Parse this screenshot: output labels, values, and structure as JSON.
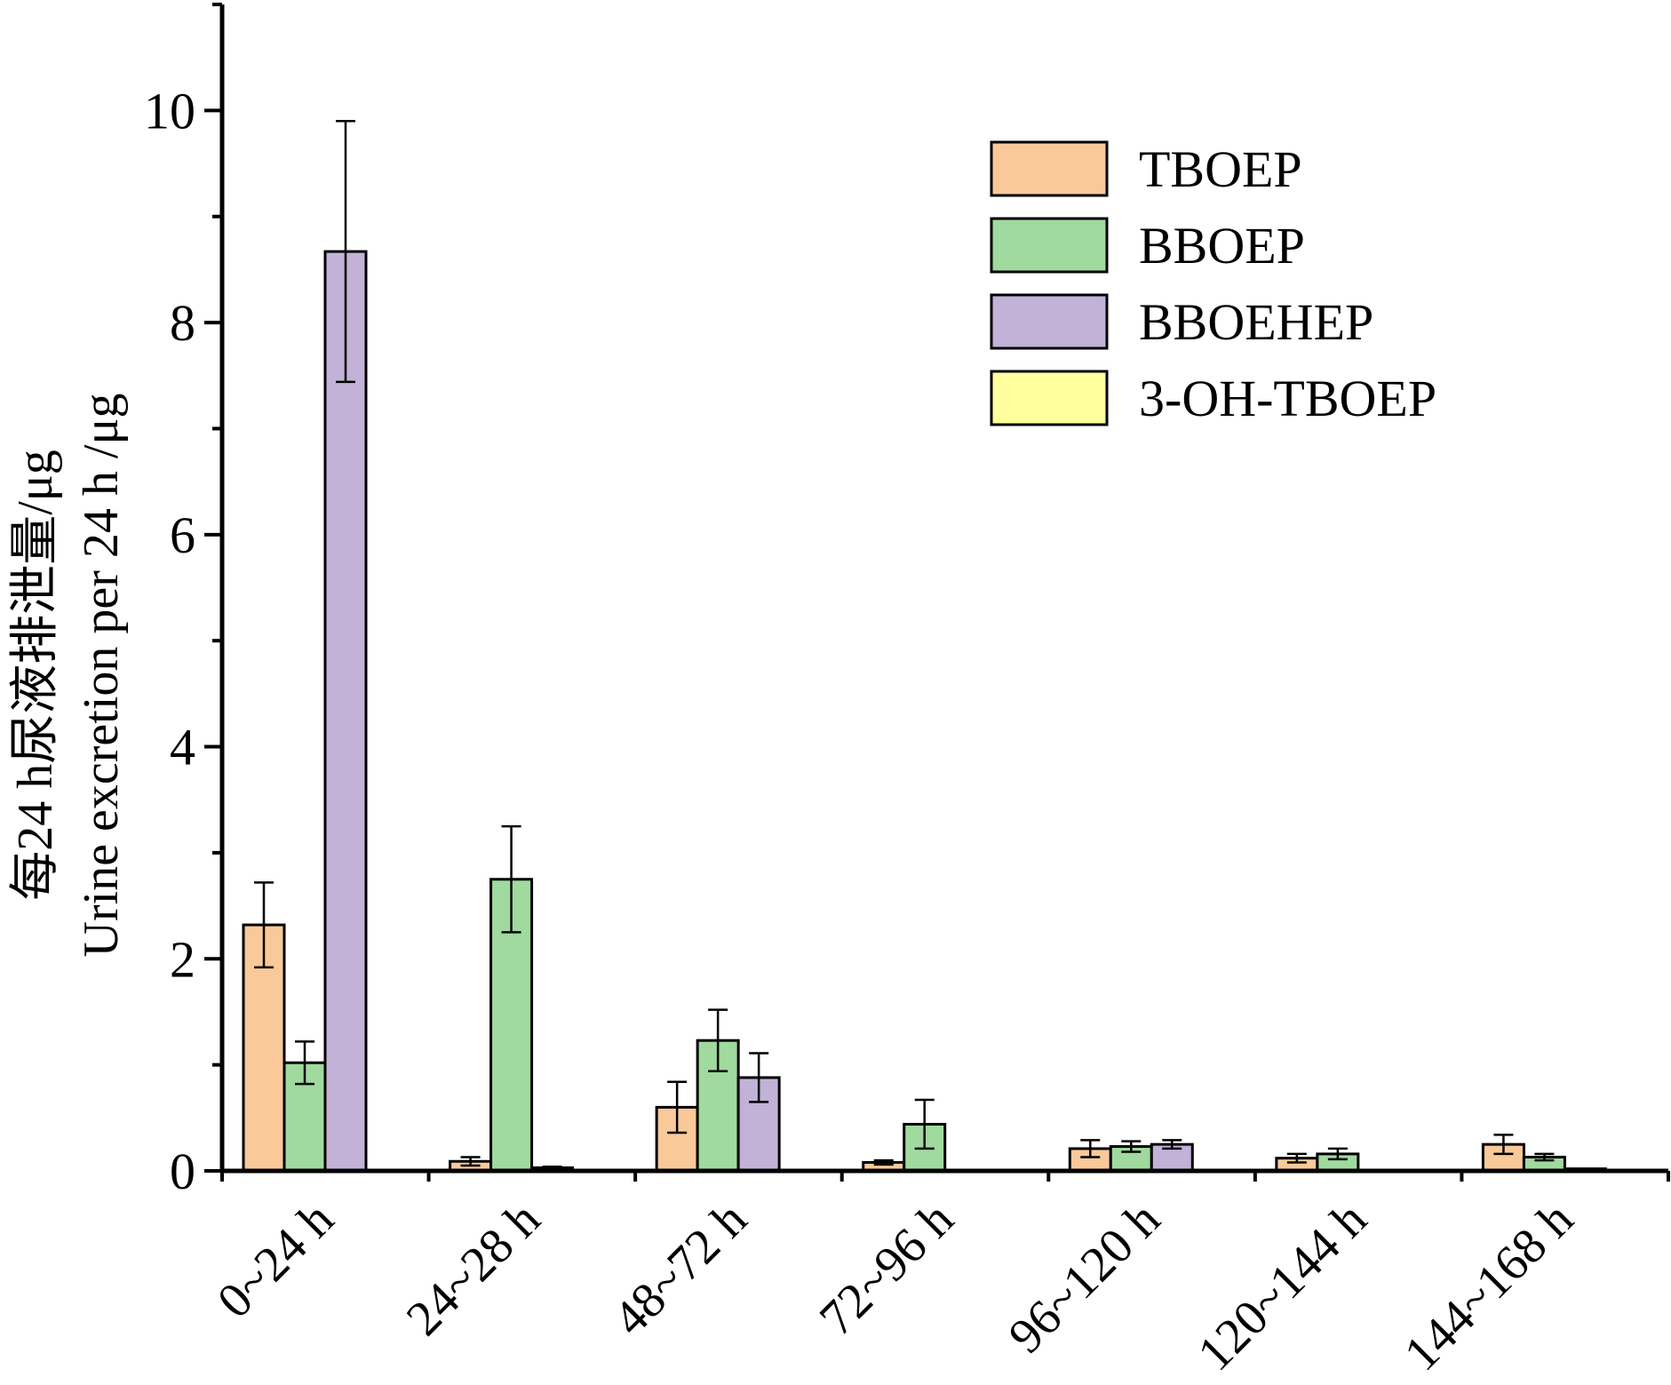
{
  "chart_data": {
    "type": "bar",
    "title": "",
    "ylabel_cn": "每24 h尿液排泄量/μg",
    "ylabel_en": "Urine excretion per 24 h /μg",
    "xlabel": "",
    "ylim": [
      0,
      11
    ],
    "yticks": [
      0,
      2,
      4,
      6,
      8,
      10
    ],
    "minor_ticks": true,
    "grid": false,
    "legend_position": "top-right",
    "categories": [
      "0~24 h",
      "24~28 h",
      "48~72 h",
      "72~96 h",
      "96~120 h",
      "120~144 h",
      "144~168 h"
    ],
    "series": [
      {
        "name": "TBOEP",
        "color": "#F9C99A",
        "values": [
          2.32,
          0.09,
          0.6,
          0.08,
          0.21,
          0.12,
          0.25
        ],
        "errors": [
          0.4,
          0.04,
          0.24,
          0.02,
          0.08,
          0.04,
          0.09
        ]
      },
      {
        "name": "BBOEP",
        "color": "#A0DA9E",
        "values": [
          1.02,
          2.75,
          1.23,
          0.44,
          0.23,
          0.16,
          0.13
        ],
        "errors": [
          0.2,
          0.5,
          0.29,
          0.23,
          0.05,
          0.05,
          0.03
        ]
      },
      {
        "name": "BBOEHEP",
        "color": "#C3B2D8",
        "values": [
          8.67,
          0.03,
          0.88,
          0.0,
          0.25,
          0.0,
          0.02
        ],
        "errors": [
          1.23,
          0.01,
          0.23,
          0.0,
          0.04,
          0.0,
          0.0
        ]
      },
      {
        "name": "3-OH-TBOEP",
        "color": "#FFFF9E",
        "values": [
          0,
          0,
          0,
          0,
          0,
          0,
          0
        ],
        "errors": [
          0,
          0,
          0,
          0,
          0,
          0,
          0
        ]
      }
    ]
  }
}
